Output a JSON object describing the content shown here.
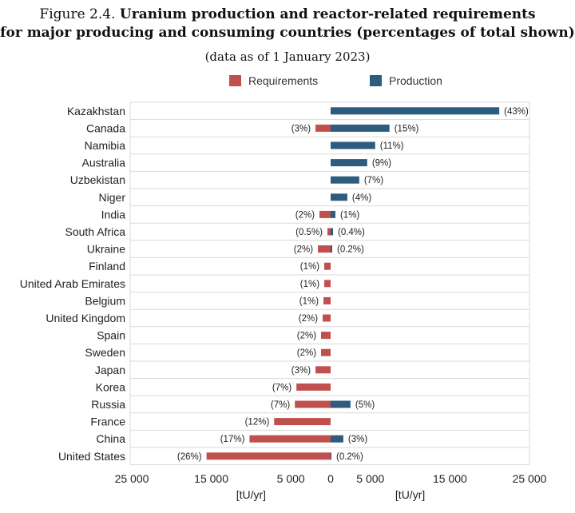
{
  "title": {
    "prefix": "Figure 2.4.",
    "main_line1": "Uranium production and reactor-related requirements",
    "main_line2": "for major producing and consuming countries (percentages of total shown)",
    "subtitle": "(data as of 1 January 2023)"
  },
  "colors": {
    "requirements": "#c0504d",
    "production": "#2e5c7f",
    "grid": "#d9d9d9"
  },
  "chart_data": {
    "type": "bar",
    "orientation": "horizontal",
    "layout": "diverging",
    "categories": [
      "Kazakhstan",
      "Canada",
      "Namibia",
      "Australia",
      "Uzbekistan",
      "Niger",
      "India",
      "South Africa",
      "Ukraine",
      "Finland",
      "United Arab Emirates",
      "Belgium",
      "United Kingdom",
      "Spain",
      "Sweden",
      "Japan",
      "Korea",
      "Russia",
      "France",
      "China",
      "United States"
    ],
    "series": [
      {
        "name": "Requirements",
        "direction": "left",
        "values": [
          0,
          1900,
          0,
          0,
          0,
          0,
          1400,
          400,
          1600,
          800,
          800,
          900,
          1000,
          1200,
          1200,
          1900,
          4300,
          4500,
          7100,
          10200,
          15600
        ],
        "labels": [
          "",
          "(3%)",
          "",
          "",
          "",
          "",
          "(2%)",
          "(0.5%)",
          "(2%)",
          "(1%)",
          "(1%)",
          "(1%)",
          "(2%)",
          "(2%)",
          "(2%)",
          "(3%)",
          "(7%)",
          "(7%)",
          "(12%)",
          "(17%)",
          "(26%)"
        ]
      },
      {
        "name": "Production",
        "direction": "right",
        "values": [
          21200,
          7400,
          5600,
          4600,
          3600,
          2100,
          600,
          300,
          200,
          0,
          0,
          0,
          0,
          0,
          0,
          0,
          0,
          2500,
          0,
          1600,
          100
        ],
        "labels": [
          "(43%)",
          "(15%)",
          "(11%)",
          "(9%)",
          "(7%)",
          "(4%)",
          "(1%)",
          "(0.4%)",
          "(0.2%)",
          "",
          "",
          "",
          "",
          "",
          "",
          "",
          "",
          "(5%)",
          "",
          "(3%)",
          "(0.2%)"
        ]
      }
    ],
    "x_ticks": [
      "25 000",
      "15 000",
      "5 000",
      "0",
      "5 000",
      "15 000",
      "25 000"
    ],
    "x_tick_values": [
      -25000,
      -15000,
      -5000,
      0,
      5000,
      15000,
      25000
    ],
    "xlim": [
      -25000,
      25000
    ],
    "x_unit_left": "[tU/yr]",
    "x_unit_right": "[tU/yr]",
    "legend_position": "top-center",
    "grid": true
  }
}
